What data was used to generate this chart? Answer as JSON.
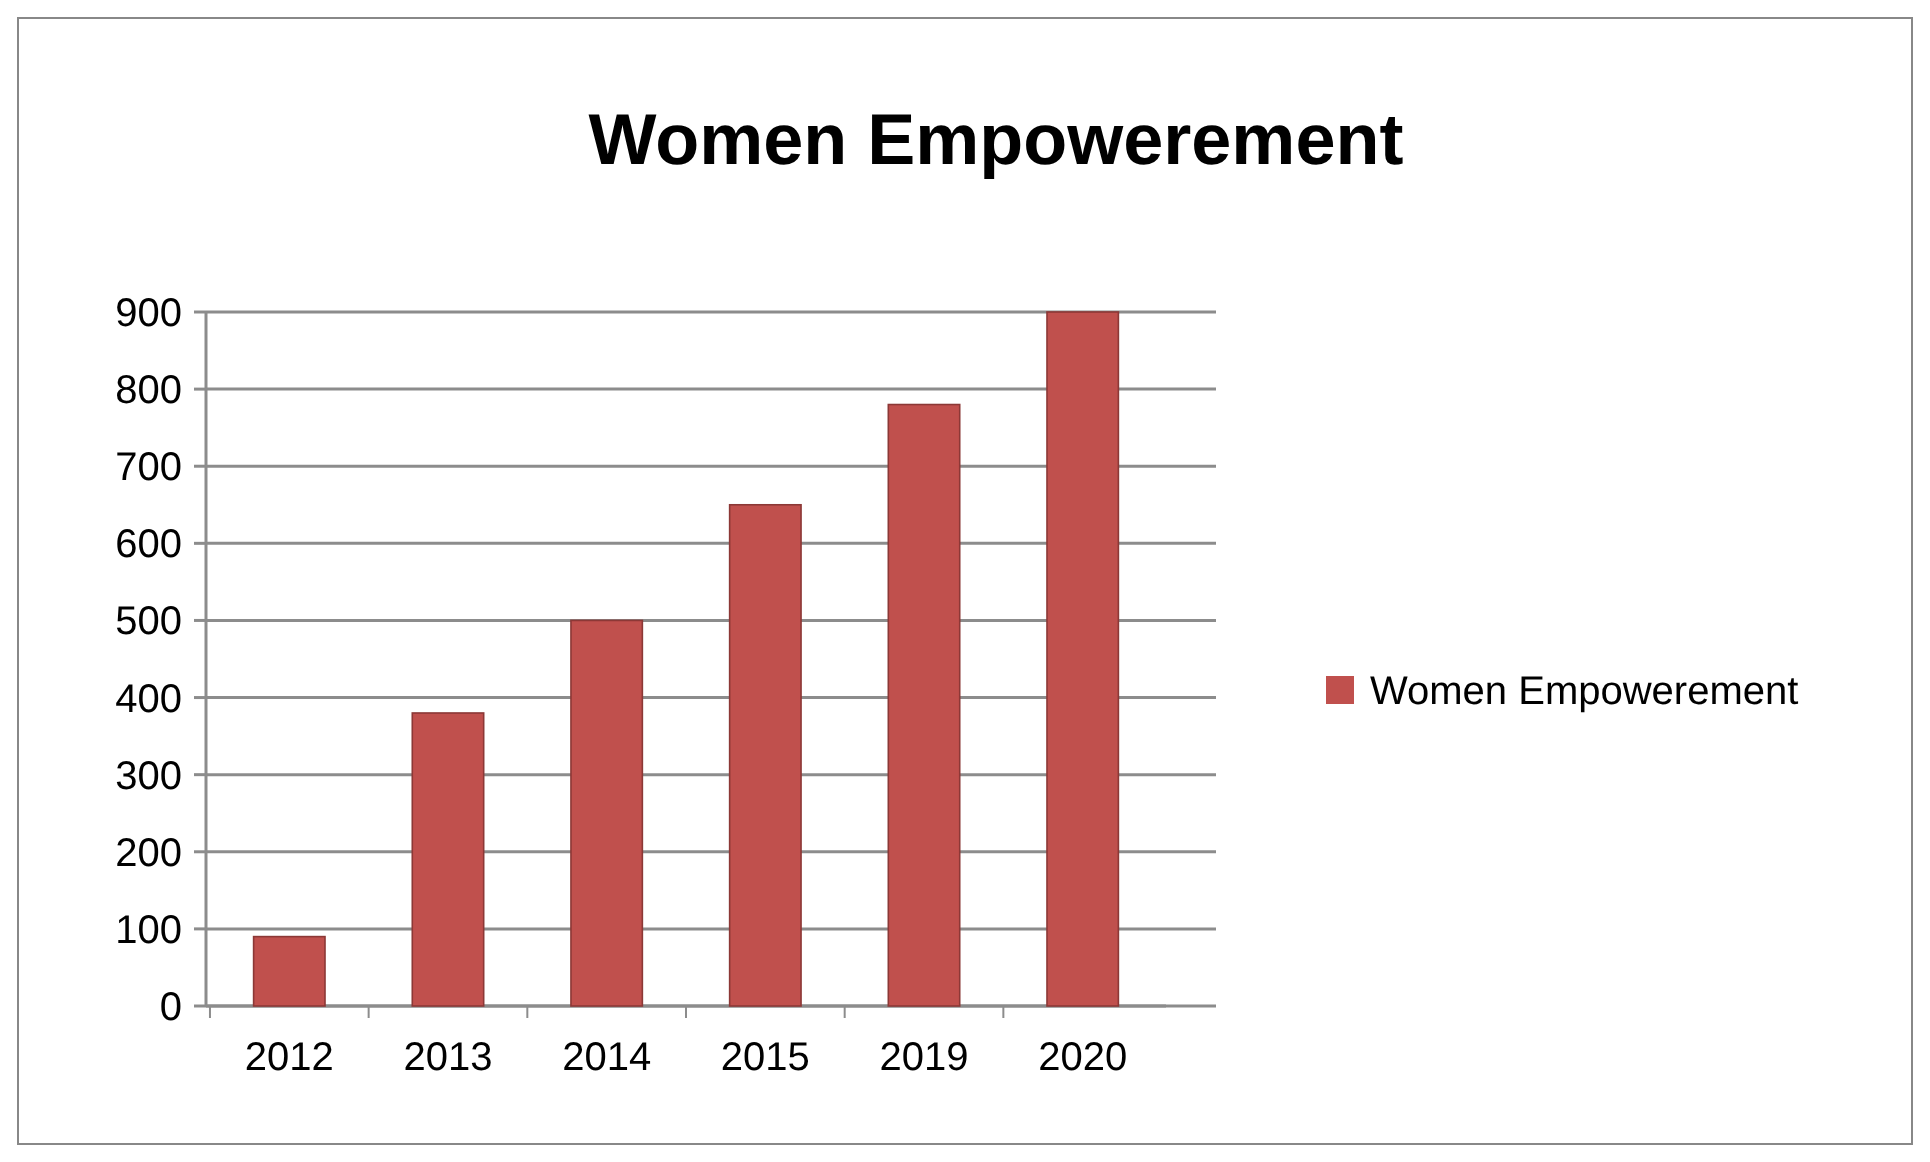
{
  "chart_data": {
    "type": "bar",
    "title": "Women Empowerement",
    "categories": [
      "2012",
      "2013",
      "2014",
      "2015",
      "2019",
      "2020"
    ],
    "series": [
      {
        "name": "Women Empowerement",
        "color": "#c0504d",
        "values": [
          90,
          380,
          500,
          650,
          780,
          900
        ]
      }
    ],
    "ylim": [
      0,
      900
    ],
    "yticks": [
      0,
      100,
      200,
      300,
      400,
      500,
      600,
      700,
      800,
      900
    ],
    "grid": "y",
    "legend": "right"
  }
}
